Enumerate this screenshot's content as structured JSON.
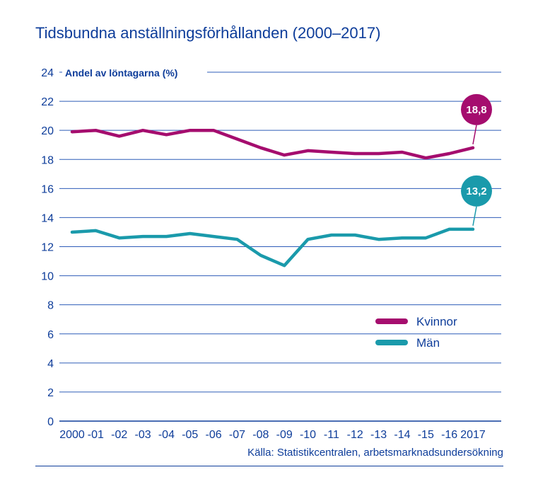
{
  "title": "Tidsbundna anställningsförhållanden (2000–2017)",
  "source": "Källa: Statistikcentralen, arbetsmarknadsundersökning",
  "chart_data": {
    "type": "line",
    "title": "Tidsbundna anställningsförhållanden (2000–2017)",
    "xlabel": "",
    "ylabel": "Andel av löntagarna (%)",
    "ylim": [
      0,
      24
    ],
    "yticks": [
      "0",
      "2",
      "4",
      "6",
      "8",
      "10",
      "12",
      "14",
      "16",
      "18",
      "20",
      "22",
      "24"
    ],
    "categories": [
      "2000",
      "-01",
      "-02",
      "-03",
      "-04",
      "-05",
      "-06",
      "-07",
      "-08",
      "-09",
      "-10",
      "-11",
      "-12",
      "-13",
      "-14",
      "-15",
      "-16",
      "2017"
    ],
    "grid": true,
    "legend": "bottom-right",
    "series": [
      {
        "name": "Kvinnor",
        "color": "#a50d6e",
        "values": [
          19.9,
          20.0,
          19.6,
          20.0,
          19.7,
          20.0,
          20.0,
          19.4,
          18.8,
          18.3,
          18.6,
          18.5,
          18.4,
          18.4,
          18.5,
          18.1,
          18.4,
          18.8
        ],
        "end_label": "18,8"
      },
      {
        "name": "Män",
        "color": "#1a9aab",
        "values": [
          13.0,
          13.1,
          12.6,
          12.7,
          12.7,
          12.9,
          12.7,
          12.5,
          11.4,
          10.7,
          12.5,
          12.8,
          12.8,
          12.5,
          12.6,
          12.6,
          13.2,
          13.2
        ],
        "end_label": "13,2"
      }
    ]
  }
}
